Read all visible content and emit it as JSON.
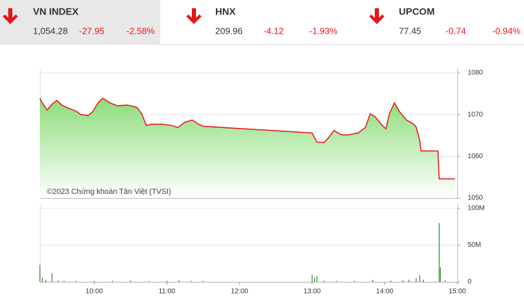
{
  "indices": [
    {
      "name": "VN INDEX",
      "value": "1,054.28",
      "change": "-27.95",
      "percent": "-2.58%"
    },
    {
      "name": "HNX",
      "value": "209.96",
      "change": "-4.12",
      "percent": "-1.93%"
    },
    {
      "name": "UPCOM",
      "value": "77.45",
      "change": "-0.74",
      "percent": "-0.94%"
    }
  ],
  "chart_data": [
    {
      "type": "area",
      "annotation": "©2023 Chứng khoán Tân Việt (TVSI)",
      "x": [
        555,
        557,
        561,
        565,
        569,
        573,
        579,
        585,
        589,
        595,
        599,
        603,
        607,
        613,
        619,
        627,
        635,
        639,
        643,
        647,
        656,
        664,
        669,
        675,
        681,
        686,
        690,
        780,
        784,
        790,
        794,
        798,
        804,
        809,
        818,
        824,
        828,
        832,
        838,
        841,
        844,
        848,
        852,
        858,
        864,
        866,
        869,
        870,
        884,
        885,
        898
      ],
      "series": [
        {
          "color": "#e8141c",
          "values": [
            1073.9,
            1072.8,
            1071.1,
            1072.5,
            1073.4,
            1072.3,
            1071.5,
            1070.8,
            1070.0,
            1069.8,
            1070.8,
            1072.8,
            1073.9,
            1072.8,
            1072.1,
            1072.3,
            1071.8,
            1070.3,
            1067.4,
            1067.7,
            1067.7,
            1067.4,
            1066.9,
            1068.2,
            1068.7,
            1067.7,
            1067.2,
            1065.6,
            1063.4,
            1063.3,
            1064.6,
            1066.2,
            1065.2,
            1065.1,
            1065.6,
            1066.9,
            1070.2,
            1069.5,
            1067.4,
            1066.6,
            1070.3,
            1072.8,
            1070.8,
            1068.7,
            1067.7,
            1067.0,
            1063.8,
            1061.3,
            1061.3,
            1054.6,
            1054.6
          ]
        }
      ],
      "xlim": [
        555,
        900
      ],
      "ylim": [
        1050,
        1080
      ],
      "yticks": [
        1050,
        1060,
        1070,
        1080
      ],
      "grid": true
    },
    {
      "type": "bar",
      "x": [
        555,
        557,
        560,
        565,
        570,
        575,
        585,
        600,
        615,
        630,
        645,
        660,
        670,
        680,
        690,
        780,
        782,
        784,
        790,
        800,
        815,
        830,
        845,
        855,
        860,
        866,
        869,
        872,
        885,
        886,
        890
      ],
      "values": [
        23000000,
        6000000,
        3000000,
        12000000,
        2000000,
        1500000,
        1500000,
        1000000,
        1500000,
        2000000,
        1000000,
        1500000,
        2500000,
        1500000,
        1500000,
        10000000,
        6000000,
        8000000,
        2000000,
        1500000,
        1500000,
        3000000,
        2000000,
        2500000,
        3000000,
        5000000,
        9000000,
        3000000,
        80000000,
        20000000,
        2000000
      ],
      "color": "#2e8b2e",
      "xlim": [
        555,
        900
      ],
      "ylim": [
        0,
        100000000
      ],
      "yticks": [
        0,
        {
          "value": 50000000,
          "label": "50M"
        },
        {
          "value": 100000000,
          "label": "100M"
        }
      ],
      "xticks": [
        {
          "value": 600,
          "label": "10:00"
        },
        {
          "value": 660,
          "label": "11:00"
        },
        {
          "value": 720,
          "label": "12:00"
        },
        {
          "value": 780,
          "label": "13:00"
        },
        {
          "value": 840,
          "label": "14:00"
        },
        {
          "value": 900,
          "label": "15:00"
        }
      ],
      "grid": true
    }
  ]
}
